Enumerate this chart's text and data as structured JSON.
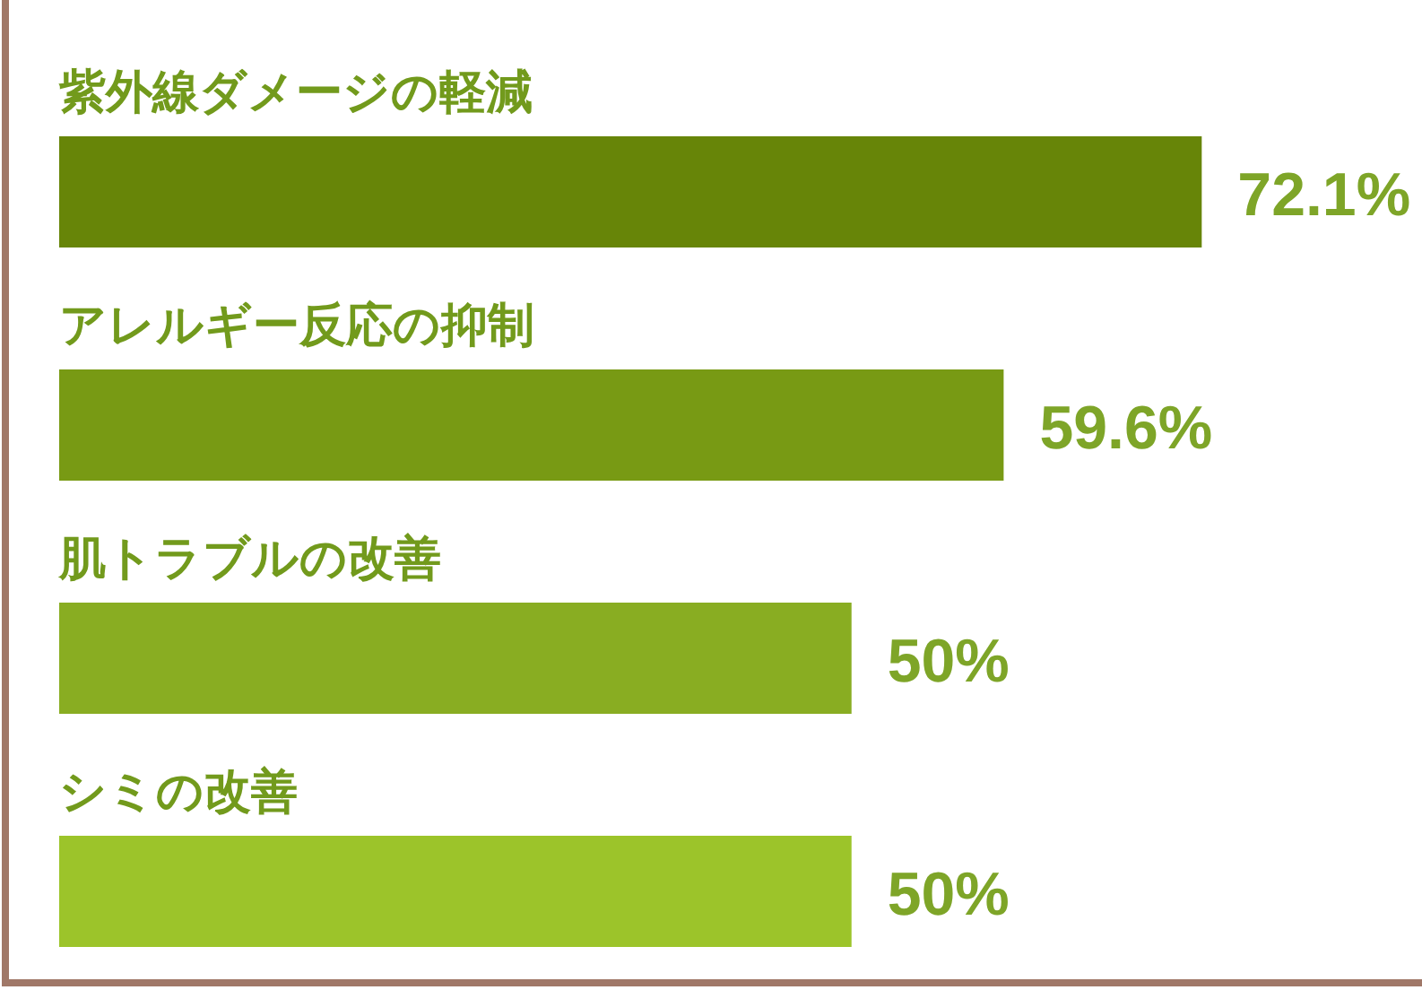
{
  "chart_data": {
    "type": "bar",
    "orientation": "horizontal",
    "categories": [
      "紫外線ダメージの軽減",
      "アレルギー反応の抑制",
      "肌トラブルの改善",
      "シミの改善"
    ],
    "values": [
      72.1,
      59.6,
      50,
      50
    ],
    "value_labels": [
      "72.1%",
      "59.6%",
      "50%",
      "50%"
    ],
    "colors": [
      "#678508",
      "#789a14",
      "#89ad22",
      "#9cc42a"
    ],
    "xlim": [
      0,
      86
    ]
  }
}
